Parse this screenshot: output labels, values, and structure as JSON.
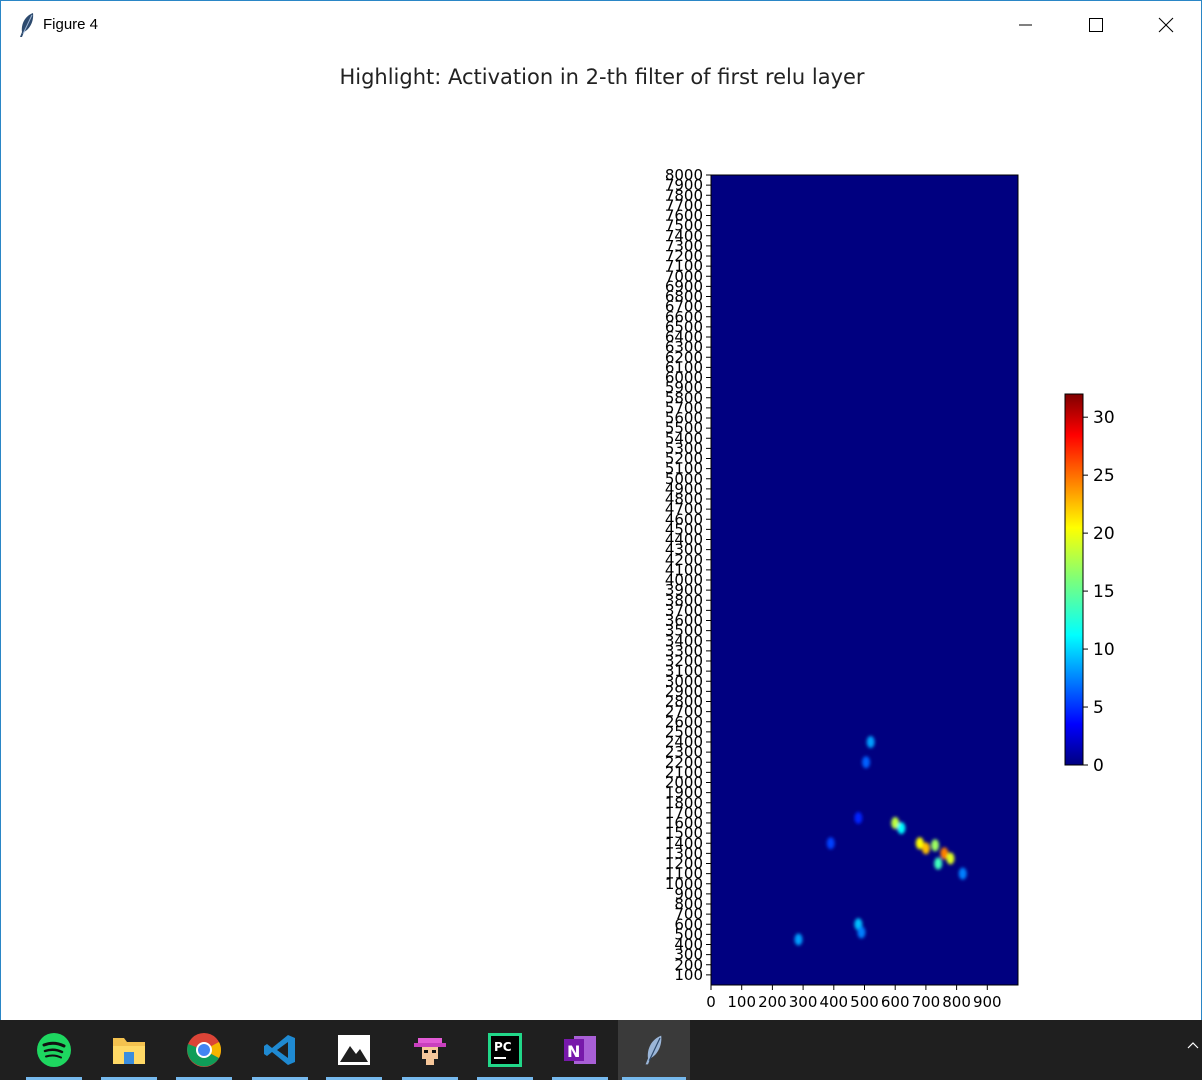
{
  "window": {
    "title": "Figure 4",
    "app_icon": "feather-icon",
    "controls": [
      "minimize-icon",
      "maximize-icon",
      "close-icon"
    ]
  },
  "figure": {
    "title": "Highlight: Activation in 2-th filter of first relu layer"
  },
  "chart_data": {
    "type": "heatmap",
    "title": "Highlight: Activation in 2-th filter of first relu layer",
    "colormap": "jet",
    "x_ticks": [
      "0",
      "100",
      "200",
      "300",
      "400",
      "500",
      "600",
      "700",
      "800",
      "900"
    ],
    "xlim": [
      0,
      1000
    ],
    "y_ticks": [
      "8000",
      "7900",
      "7800",
      "7700",
      "7600",
      "7500",
      "7400",
      "7300",
      "7200",
      "7100",
      "7000",
      "6900",
      "6800",
      "6700",
      "6600",
      "6500",
      "6400",
      "6300",
      "6200",
      "6100",
      "6000",
      "5900",
      "5800",
      "5700",
      "5600",
      "5500",
      "5400",
      "5300",
      "5200",
      "5100",
      "5000",
      "4900",
      "4800",
      "4700",
      "4600",
      "4500",
      "4400",
      "4300",
      "4200",
      "4100",
      "4000",
      "3900",
      "3800",
      "3700",
      "3600",
      "3500",
      "3400",
      "3300",
      "3200",
      "3100",
      "3000",
      "2900",
      "2800",
      "2700",
      "2600",
      "2500",
      "2400",
      "2300",
      "2200",
      "2100",
      "2000",
      "1900",
      "1800",
      "1700",
      "1600",
      "1500",
      "1400",
      "1300",
      "1200",
      "1100",
      "1000",
      "900",
      "800",
      "700",
      "600",
      "500",
      "400",
      "300",
      "200",
      "100"
    ],
    "ylim": [
      0,
      8000
    ],
    "colorbar": {
      "ticks": [
        "0",
        "5",
        "10",
        "15",
        "20",
        "25",
        "30"
      ],
      "range": [
        0,
        32
      ]
    },
    "background_value": 0,
    "hotspots": [
      {
        "x": 600,
        "y": 1600,
        "value": 18
      },
      {
        "x": 620,
        "y": 1550,
        "value": 12
      },
      {
        "x": 680,
        "y": 1400,
        "value": 20
      },
      {
        "x": 700,
        "y": 1350,
        "value": 22
      },
      {
        "x": 730,
        "y": 1380,
        "value": 17
      },
      {
        "x": 760,
        "y": 1300,
        "value": 24
      },
      {
        "x": 780,
        "y": 1250,
        "value": 19
      },
      {
        "x": 740,
        "y": 1200,
        "value": 14
      },
      {
        "x": 520,
        "y": 2400,
        "value": 9
      },
      {
        "x": 505,
        "y": 2200,
        "value": 7
      },
      {
        "x": 480,
        "y": 600,
        "value": 10
      },
      {
        "x": 490,
        "y": 520,
        "value": 8
      },
      {
        "x": 285,
        "y": 450,
        "value": 9
      },
      {
        "x": 390,
        "y": 1400,
        "value": 6
      },
      {
        "x": 480,
        "y": 1650,
        "value": 5
      },
      {
        "x": 820,
        "y": 1100,
        "value": 8
      }
    ]
  },
  "taskbar": {
    "items": [
      {
        "icon": "spotify-icon"
      },
      {
        "icon": "file-explorer-icon"
      },
      {
        "icon": "chrome-icon"
      },
      {
        "icon": "vscode-icon"
      },
      {
        "icon": "photos-icon"
      },
      {
        "icon": "pixel-character-icon"
      },
      {
        "icon": "pycharm-icon"
      },
      {
        "icon": "onenote-icon"
      },
      {
        "icon": "feather-icon"
      }
    ]
  }
}
